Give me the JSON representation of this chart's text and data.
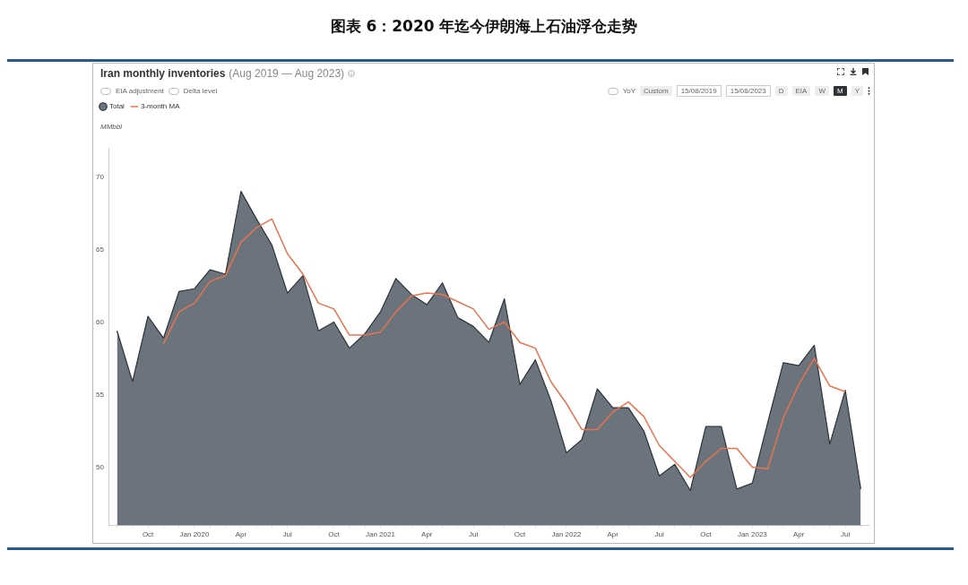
{
  "chart_data": {
    "type": "area",
    "title": "图表 6：2020 年迄今伊朗海上石油浮仓走势",
    "subtitle": "Iran monthly inventories (Aug 2019 — Aug 2023)",
    "ylabel": "MMbbl",
    "categories": [
      null,
      null,
      "Oct",
      null,
      null,
      "Jan 2020",
      null,
      null,
      "Apr",
      null,
      null,
      "Jul",
      null,
      null,
      "Oct",
      null,
      null,
      "Jan 2021",
      null,
      null,
      "Apr",
      null,
      null,
      "Jul",
      null,
      null,
      "Oct",
      null,
      null,
      "Jan 2022",
      null,
      null,
      "Apr",
      null,
      null,
      "Jul",
      null,
      null,
      "Oct",
      null,
      null,
      "Jan 2023",
      null,
      null,
      "Apr",
      null,
      null,
      "Jul",
      null
    ],
    "series": [
      {
        "name": "Total",
        "type": "area",
        "color": "#6b747c",
        "values": [
          59.4,
          55.9,
          60.4,
          58.9,
          62.1,
          62.3,
          63.6,
          63.3,
          69.0,
          67.1,
          65.3,
          62.0,
          63.2,
          59.4,
          60.0,
          58.2,
          59.2,
          60.7,
          63.0,
          61.9,
          61.2,
          62.7,
          60.3,
          59.7,
          58.6,
          61.6,
          55.7,
          57.4,
          54.6,
          51.0,
          51.9,
          55.4,
          54.1,
          54.1,
          52.5,
          49.4,
          50.2,
          48.4,
          52.8,
          52.8,
          48.5,
          48.9,
          53.1,
          57.2,
          57.0,
          58.4,
          51.6,
          55.3,
          48.5
        ]
      },
      {
        "name": "3-month MA",
        "type": "line",
        "color": "#e8734f",
        "values": [
          null,
          null,
          null,
          58.5,
          60.7,
          61.3,
          62.8,
          63.2,
          65.5,
          66.5,
          67.1,
          64.7,
          63.3,
          61.3,
          60.9,
          59.1,
          59.1,
          59.3,
          60.7,
          61.8,
          62.0,
          61.9,
          61.4,
          60.9,
          59.5,
          60.0,
          58.6,
          58.2,
          55.9,
          54.4,
          52.6,
          52.6,
          53.8,
          54.5,
          53.5,
          51.5,
          50.4,
          49.3,
          50.4,
          51.3,
          51.3,
          50.0,
          49.9,
          53.4,
          55.7,
          57.5,
          55.6,
          55.2,
          null
        ]
      }
    ],
    "ylim": [
      46,
      72
    ],
    "yticks": [
      50,
      55,
      60,
      65,
      70
    ],
    "legend": "top left",
    "annotations": [
      "EIA adjustment",
      "Delta level",
      "YoY",
      "Custom",
      "15/08/2019",
      "15/08/2023",
      "D",
      "EIA",
      "W",
      "M",
      "Y"
    ]
  }
}
